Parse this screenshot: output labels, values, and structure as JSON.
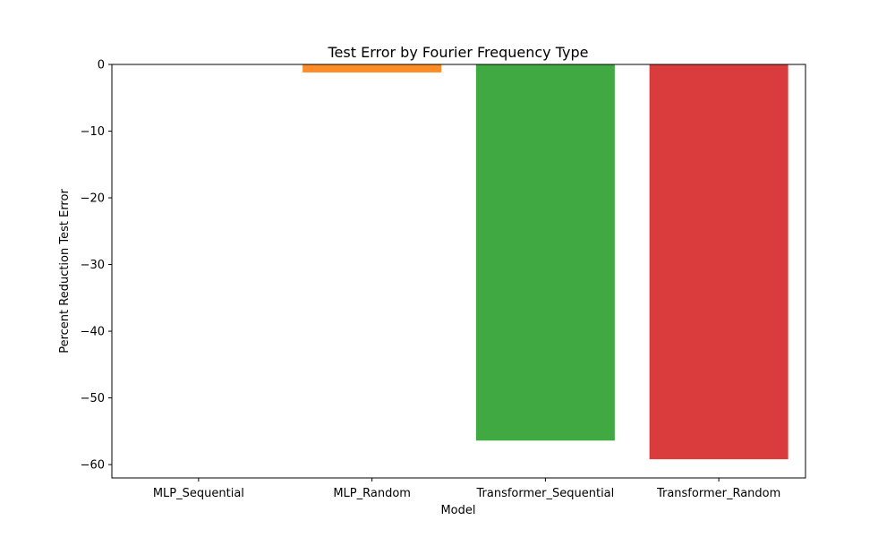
{
  "chart_data": {
    "type": "bar",
    "title": "Test Error by Fourier Frequency Type",
    "xlabel": "Model",
    "ylabel": "Percent Reduction Test Error",
    "categories": [
      "MLP_Sequential",
      "MLP_Random",
      "Transformer_Sequential",
      "Transformer_Random"
    ],
    "values": [
      0.0,
      -1.2,
      -56.4,
      -59.2
    ],
    "colors": [
      "#1f77b4",
      "#ff7f0e",
      "#2ca02c",
      "#d62728"
    ],
    "ylim": [
      -62,
      0
    ],
    "yticks": [
      0,
      -10,
      -20,
      -30,
      -40,
      -50,
      -60
    ],
    "ytick_labels": [
      "0",
      "−10",
      "−20",
      "−30",
      "−40",
      "−50",
      "−60"
    ],
    "grid": false,
    "legend": false
  }
}
